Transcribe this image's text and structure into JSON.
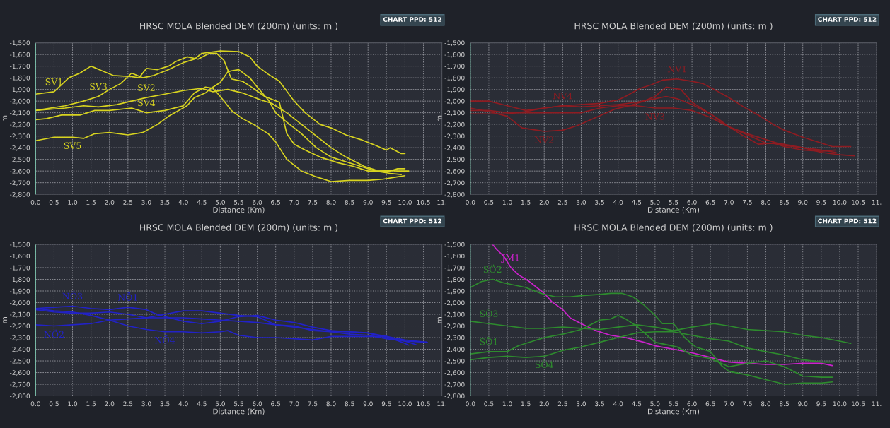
{
  "chart_data": [
    {
      "type": "line",
      "title": "HRSC MOLA Blended DEM (200m) (units: m )",
      "xlabel": "Distance (Km)",
      "ylabel": "m",
      "xlim": [
        0,
        11
      ],
      "ylim": [
        -2800,
        -1500
      ],
      "xticks": [
        {
          "value": 0,
          "label": "0.0"
        },
        {
          "value": 0.5,
          "label": "0.5"
        },
        {
          "value": 1,
          "label": "1.0"
        },
        {
          "value": 1.5,
          "label": "1.5"
        },
        {
          "value": 2,
          "label": "2.0"
        },
        {
          "value": 2.5,
          "label": "2.5"
        },
        {
          "value": 3,
          "label": "3.0"
        },
        {
          "value": 3.5,
          "label": "3.5"
        },
        {
          "value": 4,
          "label": "4.0"
        },
        {
          "value": 4.5,
          "label": "4.5"
        },
        {
          "value": 5,
          "label": "5.0"
        },
        {
          "value": 5.5,
          "label": "5.5"
        },
        {
          "value": 6,
          "label": "6.0"
        },
        {
          "value": 6.5,
          "label": "6.5"
        },
        {
          "value": 7,
          "label": "7.0"
        },
        {
          "value": 7.5,
          "label": "7.5"
        },
        {
          "value": 8,
          "label": "8.0"
        },
        {
          "value": 8.5,
          "label": "8.5"
        },
        {
          "value": 9,
          "label": "9.0"
        },
        {
          "value": 9.5,
          "label": "9.5"
        },
        {
          "value": 10,
          "label": "10.0"
        },
        {
          "value": 10.5,
          "label": "10.5"
        },
        {
          "value": 11,
          "label": "11."
        }
      ],
      "yticks": [
        {
          "value": -2800,
          "label": "-2,800"
        },
        {
          "value": -2700,
          "label": "-2,700"
        },
        {
          "value": -2600,
          "label": "-2,600"
        },
        {
          "value": -2500,
          "label": "-2,500"
        },
        {
          "value": -2400,
          "label": "-2,400"
        },
        {
          "value": -2300,
          "label": "-2,300"
        },
        {
          "value": -2200,
          "label": "-2,200"
        },
        {
          "value": -2100,
          "label": "-2,100"
        },
        {
          "value": -2000,
          "label": "-2,000"
        },
        {
          "value": -1900,
          "label": "-1,900"
        },
        {
          "value": -1800,
          "label": "-1,800"
        },
        {
          "value": -1700,
          "label": "-1,700"
        },
        {
          "value": -1600,
          "label": "-1,600"
        },
        {
          "value": -1500,
          "label": "-1,500"
        }
      ],
      "grid": true,
      "series": [
        {
          "color": "#d8d420",
          "x": [
            0,
            0.5,
            0.9,
            1.2,
            1.5,
            1.8,
            2.1,
            2.6,
            2.8,
            3.0,
            3.3,
            3.6,
            3.8,
            4.1,
            4.4,
            4.7,
            4.9,
            5.1,
            5.3,
            5.6,
            5.8,
            6.2,
            6.6,
            6.8,
            7.0,
            7.3,
            7.7,
            8.2,
            8.6,
            9.0,
            9.6,
            9.8,
            10.0
          ],
          "values": [
            -1940,
            -1920,
            -1800,
            -1760,
            -1700,
            -1740,
            -1780,
            -1790,
            -1800,
            -1720,
            -1730,
            -1700,
            -1660,
            -1620,
            -1640,
            -1590,
            -1590,
            -1650,
            -1810,
            -1830,
            -1870,
            -1960,
            -2010,
            -2280,
            -2370,
            -2420,
            -2480,
            -2530,
            -2560,
            -2600,
            -2600,
            -2580,
            -2580
          ]
        },
        {
          "color": "#d8d420",
          "x": [
            0,
            0.8,
            1.3,
            1.7,
            2.2,
            2.6,
            3.0,
            3.5,
            4.0,
            4.5,
            4.8,
            5.2,
            5.6,
            6.1,
            6.4,
            6.8,
            7.2,
            7.6,
            8.0,
            8.4,
            8.9,
            9.2,
            9.8,
            10.1
          ],
          "values": [
            -2080,
            -2060,
            -2040,
            -2050,
            -2030,
            -2000,
            -1970,
            -1940,
            -1910,
            -1890,
            -1920,
            -1900,
            -1930,
            -1990,
            -2020,
            -2100,
            -2200,
            -2300,
            -2400,
            -2480,
            -2560,
            -2590,
            -2600,
            -2600
          ]
        },
        {
          "color": "#d8d420",
          "x": [
            0,
            0.8,
            1.3,
            1.7,
            2.0,
            2.3,
            2.6,
            2.9,
            3.2,
            3.6,
            4.0,
            4.3,
            4.5,
            5.0,
            5.5,
            5.8,
            6.0,
            6.3,
            6.6,
            7.0,
            7.3,
            7.7,
            8.0,
            8.4,
            8.8,
            9.2,
            9.5,
            9.6,
            9.9,
            10.0
          ],
          "values": [
            -2080,
            -2040,
            -2000,
            -1960,
            -1900,
            -1850,
            -1760,
            -1800,
            -1780,
            -1730,
            -1670,
            -1640,
            -1590,
            -1570,
            -1575,
            -1620,
            -1700,
            -1770,
            -1830,
            -2000,
            -2100,
            -2200,
            -2230,
            -2290,
            -2330,
            -2380,
            -2420,
            -2400,
            -2450,
            -2450
          ]
        },
        {
          "color": "#d8d420",
          "x": [
            0,
            0.3,
            0.7,
            1.2,
            1.6,
            2.0,
            2.6,
            3.0,
            3.5,
            4.0,
            4.3,
            4.6,
            4.8,
            5.0,
            5.3,
            5.6,
            5.9,
            6.3,
            6.5,
            6.8,
            7.2,
            7.6,
            8.0,
            8.5,
            9.0,
            9.4,
            9.8,
            10.0
          ],
          "values": [
            -2160,
            -2150,
            -2120,
            -2120,
            -2080,
            -2080,
            -2060,
            -2100,
            -2080,
            -2040,
            -1930,
            -1880,
            -1890,
            -1960,
            -2080,
            -2150,
            -2200,
            -2280,
            -2350,
            -2500,
            -2600,
            -2650,
            -2690,
            -2680,
            -2680,
            -2670,
            -2650,
            -2640
          ]
        },
        {
          "color": "#d8d420",
          "x": [
            0,
            0.5,
            1.0,
            1.3,
            1.6,
            2.0,
            2.5,
            2.9,
            3.3,
            3.6,
            4.1,
            4.3,
            4.6,
            4.75,
            5.0,
            5.2,
            5.3,
            5.5,
            5.8,
            6.0,
            6.3,
            6.5,
            6.8,
            7.2,
            7.6,
            8.0,
            8.4,
            8.8,
            9.2,
            9.6,
            9.9
          ],
          "values": [
            -2340,
            -2310,
            -2310,
            -2320,
            -2280,
            -2270,
            -2290,
            -2270,
            -2200,
            -2130,
            -2040,
            -1970,
            -1930,
            -1890,
            -1840,
            -1750,
            -1740,
            -1730,
            -1800,
            -1880,
            -1990,
            -2100,
            -2180,
            -2280,
            -2400,
            -2480,
            -2520,
            -2560,
            -2600,
            -2620,
            -2630
          ]
        }
      ],
      "annotations": [
        {
          "text": "SV1",
          "x": 0.5,
          "y": -1920
        },
        {
          "text": "SV3",
          "x": 1.7,
          "y": -1960
        },
        {
          "text": "SV2",
          "x": 3.0,
          "y": -1970
        },
        {
          "text": "SV4",
          "x": 3.0,
          "y": -2100
        },
        {
          "text": "SV5",
          "x": 1.0,
          "y": -2310
        },
        "CHART PPD: 512"
      ]
    },
    {
      "type": "line",
      "title": "HRSC MOLA Blended DEM (200m) (units: m )",
      "xlabel": "Distance (Km)",
      "ylabel": "m",
      "xlim": [
        0,
        11
      ],
      "ylim": [
        -2800,
        -1500
      ],
      "xticks": [
        {
          "value": 0,
          "label": "0.0"
        },
        {
          "value": 0.5,
          "label": "0.5"
        },
        {
          "value": 1,
          "label": "1.0"
        },
        {
          "value": 1.5,
          "label": "1.5"
        },
        {
          "value": 2,
          "label": "2.0"
        },
        {
          "value": 2.5,
          "label": "2.5"
        },
        {
          "value": 3,
          "label": "3.0"
        },
        {
          "value": 3.5,
          "label": "3.5"
        },
        {
          "value": 4,
          "label": "4.0"
        },
        {
          "value": 4.5,
          "label": "4.5"
        },
        {
          "value": 5,
          "label": "5.0"
        },
        {
          "value": 5.5,
          "label": "5.5"
        },
        {
          "value": 6,
          "label": "6.0"
        },
        {
          "value": 6.5,
          "label": "6.5"
        },
        {
          "value": 7,
          "label": "7.0"
        },
        {
          "value": 7.5,
          "label": "7.5"
        },
        {
          "value": 8,
          "label": "8.0"
        },
        {
          "value": 8.5,
          "label": "8.5"
        },
        {
          "value": 9,
          "label": "9.0"
        },
        {
          "value": 9.5,
          "label": "9.5"
        },
        {
          "value": 10,
          "label": "10.0"
        },
        {
          "value": 10.5,
          "label": "10.5"
        },
        {
          "value": 11,
          "label": "11."
        }
      ],
      "yticks": [
        {
          "value": -2800,
          "label": "-2,800"
        },
        {
          "value": -2700,
          "label": "-2,700"
        },
        {
          "value": -2600,
          "label": "-2,600"
        },
        {
          "value": -2500,
          "label": "-2,500"
        },
        {
          "value": -2400,
          "label": "-2,400"
        },
        {
          "value": -2300,
          "label": "-2,300"
        },
        {
          "value": -2200,
          "label": "-2,200"
        },
        {
          "value": -2100,
          "label": "-2,100"
        },
        {
          "value": -2000,
          "label": "-2,000"
        },
        {
          "value": -1900,
          "label": "-1,900"
        },
        {
          "value": -1800,
          "label": "-1,800"
        },
        {
          "value": -1700,
          "label": "-1,700"
        },
        {
          "value": -1600,
          "label": "-1,600"
        },
        {
          "value": -1500,
          "label": "-1,500"
        }
      ],
      "grid": true,
      "series": [
        {
          "color": "#8e1c22",
          "x": [
            0,
            0.5,
            1.0,
            1.5,
            2.0,
            2.5,
            3.0,
            3.5,
            4.0,
            4.2,
            4.6,
            4.9,
            5.2,
            5.6,
            6.0,
            6.3,
            6.6,
            7.0,
            7.4,
            7.8,
            8.2,
            8.5,
            9.0,
            9.5,
            9.8,
            10.3
          ],
          "values": [
            -2000,
            -2000,
            -2040,
            -2080,
            -2060,
            -2040,
            -2030,
            -2020,
            -1990,
            -1960,
            -1890,
            -1860,
            -1820,
            -1810,
            -1830,
            -1850,
            -1900,
            -1970,
            -2050,
            -2120,
            -2200,
            -2250,
            -2310,
            -2360,
            -2390,
            -2390
          ]
        },
        {
          "color": "#8e1c22",
          "x": [
            0,
            0.5,
            1.0,
            1.4,
            2.0,
            2.5,
            2.9,
            3.4,
            3.9,
            4.3,
            4.7,
            5.0,
            5.3,
            5.7,
            6.0,
            6.2,
            6.7,
            7.0,
            7.5,
            8.0,
            8.5,
            9.0,
            9.5,
            9.9
          ],
          "values": [
            -2060,
            -2090,
            -2130,
            -2230,
            -2260,
            -2250,
            -2210,
            -2140,
            -2070,
            -2040,
            -2000,
            -1960,
            -1880,
            -1900,
            -2010,
            -2050,
            -2150,
            -2220,
            -2280,
            -2330,
            -2380,
            -2400,
            -2420,
            -2440
          ]
        },
        {
          "color": "#8e1c22",
          "x": [
            0,
            0.5,
            1.0,
            2.0,
            3.0,
            3.5,
            4.0,
            4.5,
            5.0,
            5.5,
            6.0,
            6.5,
            7.0,
            7.5,
            8.0,
            8.5,
            9.0,
            9.5,
            10.0,
            10.4
          ],
          "values": [
            -2080,
            -2080,
            -2100,
            -2100,
            -2100,
            -2060,
            -2040,
            -2040,
            -2060,
            -2060,
            -2080,
            -2140,
            -2220,
            -2290,
            -2360,
            -2370,
            -2400,
            -2440,
            -2460,
            -2470
          ]
        },
        {
          "color": "#8e1c22",
          "x": [
            0,
            1.0,
            1.5,
            2.0,
            2.5,
            3.0,
            3.5,
            4.0,
            4.5,
            5.0,
            5.3,
            5.6,
            6.0,
            6.5,
            6.9,
            7.4,
            7.8,
            8.2,
            8.5,
            9.0,
            9.5,
            9.9
          ],
          "values": [
            -2110,
            -2110,
            -2090,
            -2060,
            -2040,
            -2050,
            -2040,
            -2030,
            -2010,
            -1980,
            -1960,
            -1980,
            -2030,
            -2110,
            -2200,
            -2300,
            -2370,
            -2360,
            -2390,
            -2420,
            -2430,
            -2420
          ]
        }
      ],
      "annotations": [
        {
          "text": "NV1",
          "x": 5.6,
          "y": -1810
        },
        {
          "text": "NV4",
          "x": 2.5,
          "y": -2040
        },
        {
          "text": "NV2",
          "x": 2.0,
          "y": -2260
        },
        {
          "text": "NV3",
          "x": 5.0,
          "y": -2060
        },
        "CHART PPD: 512"
      ]
    },
    {
      "type": "line",
      "title": "HRSC MOLA Blended DEM (200m) (units: m )",
      "xlabel": "Distance (Km)",
      "ylabel": "m",
      "xlim": [
        0,
        11
      ],
      "ylim": [
        -2800,
        -1500
      ],
      "xticks": [
        {
          "value": 0,
          "label": "0.0"
        },
        {
          "value": 0.5,
          "label": "0.5"
        },
        {
          "value": 1,
          "label": "1.0"
        },
        {
          "value": 1.5,
          "label": "1.5"
        },
        {
          "value": 2,
          "label": "2.0"
        },
        {
          "value": 2.5,
          "label": "2.5"
        },
        {
          "value": 3,
          "label": "3.0"
        },
        {
          "value": 3.5,
          "label": "3.5"
        },
        {
          "value": 4,
          "label": "4.0"
        },
        {
          "value": 4.5,
          "label": "4.5"
        },
        {
          "value": 5,
          "label": "5.0"
        },
        {
          "value": 5.5,
          "label": "5.5"
        },
        {
          "value": 6,
          "label": "6.0"
        },
        {
          "value": 6.5,
          "label": "6.5"
        },
        {
          "value": 7,
          "label": "7.0"
        },
        {
          "value": 7.5,
          "label": "7.5"
        },
        {
          "value": 8,
          "label": "8.0"
        },
        {
          "value": 8.5,
          "label": "8.5"
        },
        {
          "value": 9,
          "label": "9.0"
        },
        {
          "value": 9.5,
          "label": "9.5"
        },
        {
          "value": 10,
          "label": "10.0"
        },
        {
          "value": 10.5,
          "label": "10.5"
        },
        {
          "value": 11,
          "label": "11."
        }
      ],
      "yticks": [
        {
          "value": -2800,
          "label": "-2,800"
        },
        {
          "value": -2700,
          "label": "-2,700"
        },
        {
          "value": -2600,
          "label": "-2,600"
        },
        {
          "value": -2500,
          "label": "-2,500"
        },
        {
          "value": -2400,
          "label": "-2,400"
        },
        {
          "value": -2300,
          "label": "-2,300"
        },
        {
          "value": -2200,
          "label": "-2,200"
        },
        {
          "value": -2100,
          "label": "-2,100"
        },
        {
          "value": -2000,
          "label": "-2,000"
        },
        {
          "value": -1900,
          "label": "-1,900"
        },
        {
          "value": -1800,
          "label": "-1,800"
        },
        {
          "value": -1700,
          "label": "-1,700"
        },
        {
          "value": -1600,
          "label": "-1,600"
        },
        {
          "value": -1500,
          "label": "-1,500"
        }
      ],
      "grid": true,
      "series": [
        {
          "color": "#2222c8",
          "x": [
            0,
            0.5,
            1.0,
            1.5,
            2.0,
            2.5,
            3.0,
            3.2,
            3.5,
            4.0,
            4.5,
            5.0,
            5.5,
            6.0,
            6.5,
            7.0,
            7.5,
            8.0,
            8.5,
            9.0,
            9.5,
            10.0,
            10.6
          ],
          "values": [
            -2050,
            -2040,
            -2030,
            -2050,
            -2060,
            -2040,
            -2060,
            -2090,
            -2120,
            -2160,
            -2180,
            -2160,
            -2120,
            -2110,
            -2150,
            -2170,
            -2210,
            -2240,
            -2250,
            -2260,
            -2290,
            -2320,
            -2340
          ]
        },
        {
          "color": "#2222c8",
          "x": [
            0,
            0.5,
            1.0,
            1.5,
            2.0,
            2.5,
            3.0,
            3.5,
            4.0,
            4.5,
            5.0,
            5.5,
            6.0,
            6.5,
            7.0,
            7.5,
            8.0,
            8.5,
            9.0,
            9.5,
            10.0,
            10.6
          ],
          "values": [
            -2190,
            -2200,
            -2190,
            -2180,
            -2150,
            -2140,
            -2130,
            -2100,
            -2070,
            -2070,
            -2090,
            -2110,
            -2120,
            -2190,
            -2210,
            -2230,
            -2250,
            -2270,
            -2280,
            -2310,
            -2330,
            -2340
          ]
        },
        {
          "color": "#2222c8",
          "x": [
            0,
            0.5,
            1.0,
            1.5,
            2.0,
            2.5,
            3.0,
            3.5,
            4.0,
            4.5,
            5.0,
            5.5,
            6.0,
            6.5,
            7.0,
            7.5,
            8.0,
            8.5,
            9.0,
            9.5,
            10.0,
            10.3
          ],
          "values": [
            -2060,
            -2080,
            -2090,
            -2090,
            -2080,
            -2100,
            -2130,
            -2130,
            -2130,
            -2140,
            -2150,
            -2160,
            -2170,
            -2190,
            -2200,
            -2240,
            -2250,
            -2250,
            -2260,
            -2300,
            -2330,
            -2360
          ]
        },
        {
          "color": "#2222c8",
          "x": [
            0,
            0.5,
            1.0,
            1.5,
            2.0,
            2.5,
            3.0,
            3.5,
            4.0,
            4.5,
            5.0,
            5.2,
            5.5,
            6.0,
            6.5,
            7.0,
            7.5,
            8.0,
            8.5,
            9.0,
            9.5,
            10.0,
            10.1
          ],
          "values": [
            -2050,
            -2070,
            -2080,
            -2110,
            -2150,
            -2200,
            -2230,
            -2250,
            -2250,
            -2260,
            -2250,
            -2240,
            -2280,
            -2300,
            -2300,
            -2310,
            -2320,
            -2290,
            -2290,
            -2290,
            -2290,
            -2350,
            -2365
          ]
        }
      ],
      "annotations": [
        {
          "text": "NÖ1",
          "x": 2.5,
          "y": -2040
        },
        {
          "text": "NÖ2",
          "x": 0.5,
          "y": -2200
        },
        {
          "text": "NÖ3",
          "x": 1.0,
          "y": -2030
        },
        {
          "text": "NÖ4",
          "x": 3.5,
          "y": -2250
        },
        "CHART PPD: 512"
      ]
    },
    {
      "type": "line",
      "title": "HRSC MOLA Blended DEM (200m) (units: m )",
      "xlabel": "Distance (Km)",
      "ylabel": "m",
      "xlim": [
        0,
        11
      ],
      "ylim": [
        -2800,
        -1500
      ],
      "xticks": [
        {
          "value": 0,
          "label": "0.0"
        },
        {
          "value": 0.5,
          "label": "0.5"
        },
        {
          "value": 1,
          "label": "1.0"
        },
        {
          "value": 1.5,
          "label": "1.5"
        },
        {
          "value": 2,
          "label": "2.0"
        },
        {
          "value": 2.5,
          "label": "2.5"
        },
        {
          "value": 3,
          "label": "3.0"
        },
        {
          "value": 3.5,
          "label": "3.5"
        },
        {
          "value": 4,
          "label": "4.0"
        },
        {
          "value": 4.5,
          "label": "4.5"
        },
        {
          "value": 5,
          "label": "5.0"
        },
        {
          "value": 5.5,
          "label": "5.5"
        },
        {
          "value": 6,
          "label": "6.0"
        },
        {
          "value": 6.5,
          "label": "6.5"
        },
        {
          "value": 7,
          "label": "7.0"
        },
        {
          "value": 7.5,
          "label": "7.5"
        },
        {
          "value": 8,
          "label": "8.0"
        },
        {
          "value": 8.5,
          "label": "8.5"
        },
        {
          "value": 9,
          "label": "9.0"
        },
        {
          "value": 9.5,
          "label": "9.5"
        },
        {
          "value": 10,
          "label": "10.0"
        },
        {
          "value": 10.5,
          "label": "10.5"
        },
        {
          "value": 11,
          "label": "11."
        }
      ],
      "yticks": [
        {
          "value": -2800,
          "label": "-2,800"
        },
        {
          "value": -2700,
          "label": "-2,700"
        },
        {
          "value": -2600,
          "label": "-2,600"
        },
        {
          "value": -2500,
          "label": "-2,500"
        },
        {
          "value": -2400,
          "label": "-2,400"
        },
        {
          "value": -2300,
          "label": "-2,300"
        },
        {
          "value": -2200,
          "label": "-2,200"
        },
        {
          "value": -2100,
          "label": "-2,100"
        },
        {
          "value": -2000,
          "label": "-2,000"
        },
        {
          "value": -1900,
          "label": "-1,900"
        },
        {
          "value": -1800,
          "label": "-1,800"
        },
        {
          "value": -1700,
          "label": "-1,700"
        },
        {
          "value": -1600,
          "label": "-1,600"
        },
        {
          "value": -1500,
          "label": "-1,500"
        }
      ],
      "grid": true,
      "series": [
        {
          "color": "#cc22cc",
          "x": [
            0.6,
            0.7,
            0.9,
            1.1,
            1.3,
            1.6,
            2.0,
            2.2,
            2.5,
            2.7,
            3.0,
            3.4,
            3.8,
            4.2,
            4.7,
            5.0,
            5.5,
            6.0,
            6.5,
            7.0,
            7.5,
            8.0,
            8.5,
            9.0,
            9.5,
            9.8
          ],
          "values": [
            -1500,
            -1540,
            -1600,
            -1700,
            -1760,
            -1820,
            -1920,
            -1990,
            -2060,
            -2130,
            -2180,
            -2240,
            -2280,
            -2300,
            -2340,
            -2370,
            -2400,
            -2430,
            -2470,
            -2510,
            -2520,
            -2530,
            -2530,
            -2520,
            -2520,
            -2540
          ]
        },
        {
          "color": "#2e8b2e",
          "x": [
            0,
            0.3,
            0.6,
            0.9,
            1.2,
            1.5,
            1.9,
            2.3,
            2.7,
            3.0,
            3.5,
            3.8,
            4.1,
            4.4,
            4.7,
            5.0,
            5.2,
            5.5,
            5.8,
            6.1,
            6.5,
            6.8,
            7.0,
            7.5,
            8.0,
            8.5,
            9.0,
            9.5,
            9.8
          ],
          "values": [
            -1870,
            -1820,
            -1800,
            -1830,
            -1850,
            -1870,
            -1920,
            -1950,
            -1950,
            -1940,
            -1930,
            -1920,
            -1920,
            -1950,
            -2020,
            -2110,
            -2180,
            -2180,
            -2300,
            -2380,
            -2420,
            -2540,
            -2590,
            -2620,
            -2660,
            -2700,
            -2690,
            -2690,
            -2680
          ]
        },
        {
          "color": "#2e8b2e",
          "x": [
            0,
            0.5,
            1.0,
            1.5,
            2.0,
            2.5,
            3.0,
            3.5,
            4.0,
            4.5,
            5.0,
            5.5,
            6.0,
            6.6,
            7.0,
            7.5,
            8.0,
            8.5,
            9.0,
            9.5,
            10.0,
            10.3
          ],
          "values": [
            -2160,
            -2180,
            -2200,
            -2220,
            -2220,
            -2210,
            -2220,
            -2230,
            -2210,
            -2190,
            -2210,
            -2240,
            -2210,
            -2180,
            -2200,
            -2230,
            -2240,
            -2250,
            -2280,
            -2300,
            -2330,
            -2350
          ]
        },
        {
          "color": "#2e8b2e",
          "x": [
            0,
            0.5,
            1.0,
            1.3,
            1.8,
            2.0,
            2.5,
            3.0,
            3.5,
            3.8,
            4.0,
            4.2,
            4.5,
            5.0,
            5.3,
            5.6,
            6.0,
            6.5,
            7.0,
            7.5,
            8.0,
            8.5,
            9.0,
            9.5,
            9.8
          ],
          "values": [
            -2440,
            -2420,
            -2420,
            -2370,
            -2320,
            -2300,
            -2270,
            -2230,
            -2150,
            -2140,
            -2110,
            -2140,
            -2200,
            -2340,
            -2360,
            -2380,
            -2450,
            -2480,
            -2550,
            -2520,
            -2500,
            -2550,
            -2630,
            -2640,
            -2640
          ]
        },
        {
          "color": "#2e8b2e",
          "x": [
            0,
            0.5,
            1.0,
            1.5,
            2.0,
            2.5,
            3.0,
            3.5,
            4.0,
            4.5,
            5.0,
            5.5,
            6.0,
            6.5,
            7.0,
            7.5,
            8.0,
            8.5,
            9.0,
            9.5,
            9.8
          ],
          "values": [
            -2490,
            -2470,
            -2460,
            -2470,
            -2460,
            -2410,
            -2380,
            -2340,
            -2300,
            -2260,
            -2250,
            -2250,
            -2280,
            -2310,
            -2330,
            -2390,
            -2420,
            -2450,
            -2490,
            -2510,
            -2510
          ]
        }
      ],
      "annotations": [
        {
          "text": "JM1",
          "x": 1.1,
          "y": -1700
        },
        {
          "text": "SÖ2",
          "x": 0.6,
          "y": -1800
        },
        {
          "text": "SÖ3",
          "x": 0.5,
          "y": -2180
        },
        {
          "text": "SÖ1",
          "x": 0.5,
          "y": -2420
        },
        {
          "text": "SÖ4",
          "x": 2.0,
          "y": -2460
        },
        "CHART PPD: 512"
      ]
    }
  ]
}
